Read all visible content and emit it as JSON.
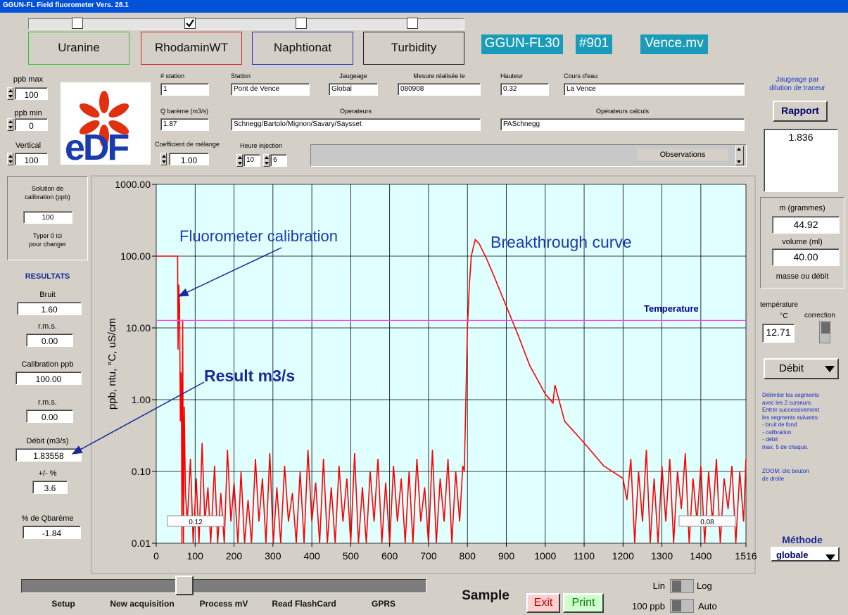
{
  "window_title": "GGUN-FL Field fluorometer Vers. 28.1",
  "channels": [
    {
      "label": "Uranine",
      "checked": false,
      "color": "#39c439"
    },
    {
      "label": "RhodaminWT",
      "checked": true,
      "color": "#d42020"
    },
    {
      "label": "Naphtionat",
      "checked": false,
      "color": "#2030c8"
    },
    {
      "label": "Turbidity",
      "checked": false,
      "color": "#202020"
    }
  ],
  "device": {
    "model": "GGUN-FL30",
    "serial": "#901",
    "file": "Vence.mv"
  },
  "scale": {
    "ppb_max_label": "ppb max",
    "ppb_max": "100",
    "ppb_min_label": "ppb min",
    "ppb_min": "0",
    "vertical_label": "Vertical",
    "vertical": "100"
  },
  "logo": "eDF",
  "form": [
    {
      "label": "# station",
      "value": "1"
    },
    {
      "label": "Station",
      "value": "Pont de Vence"
    },
    {
      "label": "Jaugeage",
      "value": "Global"
    },
    {
      "label": "Mesure réalisée le",
      "value": "080908"
    },
    {
      "label": "Hauteur",
      "value": "0.32"
    },
    {
      "label": "Cours d'eau",
      "value": "La Vence"
    },
    {
      "label": "Q barème (m3/s)",
      "value": "1.87"
    },
    {
      "label": "Operateurs",
      "value": "Schnegg/Bartolo/Mignon/Savary/Saysset"
    },
    {
      "label": "Opérateurs calculs",
      "value": "PASchnegg"
    }
  ],
  "mixing": {
    "label": "Coefficient de mélange",
    "value": "1.00"
  },
  "injection": {
    "label": "Heure injection",
    "hour": "10",
    "minute": "6"
  },
  "observations": "Observations",
  "calibration_panel": {
    "title": [
      "Solution de",
      "calibration (ppb)"
    ],
    "value": "100",
    "hint": [
      "Typer 0 ici",
      "pour changer"
    ]
  },
  "results": {
    "title": "RESULTATS",
    "fields": [
      {
        "label": "Bruit",
        "value": "1.60"
      },
      {
        "label": "r.m.s.",
        "value": "0.00"
      },
      {
        "label": "Calibration ppb",
        "value": "100.00"
      },
      {
        "label": "r.m.s.",
        "value": "0.00"
      },
      {
        "label": "Débit (m3/s)",
        "value": "1.83558"
      },
      {
        "label": "+/-  %",
        "value": "3.6"
      },
      {
        "label": "% de Qbarème",
        "value": "-1.84"
      }
    ]
  },
  "right_panel": {
    "title": [
      "Jaugeage par",
      "dilution de traceur"
    ],
    "button": "Rapport",
    "result": "1.836",
    "mass_label": "m (grammes)",
    "mass": "44.92",
    "volume_label": "volume (ml)",
    "volume": "40.00",
    "mode_label": "masse ou débit",
    "temp_label": "température",
    "temp_unit": "°C",
    "correction_label": "correction",
    "temp": "12.71",
    "output": "Débit",
    "instructions": [
      "Délimiter les segments",
      "avec les 2 curseurs.",
      "Entrer successivement",
      "les segments suivants:",
      "   -  bruit de fond",
      "       -  calibration",
      "        -  débit",
      "max. 5 de chaque."
    ],
    "zoom": [
      "ZOOM: clic bouton",
      "de droite"
    ],
    "method_label": "Méthode",
    "method": "globale"
  },
  "bottom": {
    "menu": [
      "Setup",
      "New acquisition",
      "Process mV",
      "Read FlashCard",
      "GPRS"
    ],
    "sample": "Sample",
    "exit": "Exit",
    "print": "Print",
    "lin": "Lin",
    "log": "Log",
    "range": "100 ppb",
    "auto": "Auto"
  },
  "chart_data": {
    "type": "line",
    "ylabel": "ppb, ntu, °C, uS/cm",
    "log_y": true,
    "grid": true,
    "background": "#e0ffff",
    "xlim": [
      0,
      1516
    ],
    "xticks": [
      0,
      100,
      200,
      300,
      400,
      500,
      600,
      700,
      800,
      900,
      1000,
      1100,
      1200,
      1300,
      1400,
      1516
    ],
    "ylim": [
      0.01,
      1000
    ],
    "yticks": [
      {
        "value": 0.01,
        "label": "0.01"
      },
      {
        "value": 0.1,
        "label": "0.10"
      },
      {
        "value": 1,
        "label": "1.00"
      },
      {
        "value": 10,
        "label": "10.00"
      },
      {
        "value": 100,
        "label": "100.00"
      },
      {
        "value": 1000,
        "label": "1000.00"
      }
    ],
    "series": [
      {
        "color": "#ff0000",
        "x": [
          0,
          55,
          56,
          58,
          60,
          62,
          64,
          65,
          66,
          68,
          70,
          72,
          75,
          80,
          88,
          95,
          103,
          110,
          118,
          125,
          133,
          140,
          150,
          158,
          166,
          175,
          183,
          192,
          200,
          210,
          218,
          227,
          236,
          245,
          255,
          264,
          273,
          282,
          292,
          301,
          310,
          320,
          330,
          340,
          350,
          360,
          370,
          380,
          390,
          400,
          410,
          420,
          430,
          440,
          450,
          460,
          470,
          480,
          490,
          500,
          510,
          520,
          530,
          540,
          550,
          560,
          570,
          580,
          590,
          600,
          610,
          620,
          630,
          640,
          650,
          660,
          670,
          680,
          690,
          700,
          710,
          720,
          730,
          740,
          750,
          760,
          770,
          780,
          788,
          792,
          796,
          800,
          805,
          810,
          820,
          830,
          850,
          870,
          900,
          930,
          960,
          1000,
          1020,
          1025,
          1050,
          1100,
          1150,
          1200,
          1210,
          1220,
          1230,
          1240,
          1250,
          1260,
          1270,
          1280,
          1290,
          1300,
          1310,
          1320,
          1330,
          1340,
          1350,
          1360,
          1370,
          1380,
          1390,
          1400,
          1410,
          1420,
          1430,
          1440,
          1450,
          1460,
          1470,
          1480,
          1490,
          1500,
          1510,
          1516
        ],
        "values": [
          100,
          100,
          5,
          40,
          20,
          0.5,
          2.4,
          1,
          0.01,
          13,
          0.01,
          0.8,
          0.05,
          0.02,
          0.15,
          0.01,
          0.08,
          0.01,
          0.25,
          0.02,
          0.06,
          0.01,
          0.12,
          0.01,
          0.05,
          0.01,
          0.2,
          0.02,
          0.07,
          0.01,
          0.1,
          0.01,
          0.04,
          0.01,
          0.15,
          0.02,
          0.08,
          0.01,
          0.18,
          0.01,
          0.06,
          0.01,
          0.12,
          0.02,
          0.05,
          0.01,
          0.1,
          0.01,
          0.2,
          0.02,
          0.07,
          0.01,
          0.15,
          0.01,
          0.06,
          0.01,
          0.12,
          0.02,
          0.08,
          0.01,
          0.18,
          0.01,
          0.06,
          0.01,
          0.1,
          0.02,
          0.15,
          0.01,
          0.07,
          0.01,
          0.12,
          0.02,
          0.08,
          0.01,
          0.1,
          0.01,
          0.15,
          0.02,
          0.06,
          0.01,
          0.2,
          0.01,
          0.08,
          0.02,
          0.15,
          0.01,
          0.1,
          0.02,
          0.12,
          0.1,
          1,
          10,
          40,
          100,
          170,
          150,
          90,
          50,
          20,
          8,
          3,
          1.2,
          0.9,
          1.6,
          0.5,
          0.25,
          0.12,
          0.08,
          0.04,
          0.15,
          0.01,
          0.1,
          0.02,
          0.2,
          0.01,
          0.08,
          0.01,
          0.12,
          0.02,
          0.15,
          0.01,
          0.1,
          0.03,
          0.18,
          0.01,
          0.08,
          0.02,
          0.12,
          0.01,
          0.1,
          0.02,
          0.15,
          0.01,
          0.08,
          0.03,
          0.12,
          0.01,
          0.1,
          0.02,
          0.15
        ]
      },
      {
        "name": "Temperature",
        "color": "#ff40ff",
        "x": [
          0,
          1516
        ],
        "values": [
          12.71,
          12.71
        ]
      }
    ],
    "annotations": [
      "Fluorometer calibration",
      "Breakthrough curve",
      "Result  m3/s"
    ],
    "cursor_labels": [
      "0.12",
      "0.08"
    ]
  }
}
